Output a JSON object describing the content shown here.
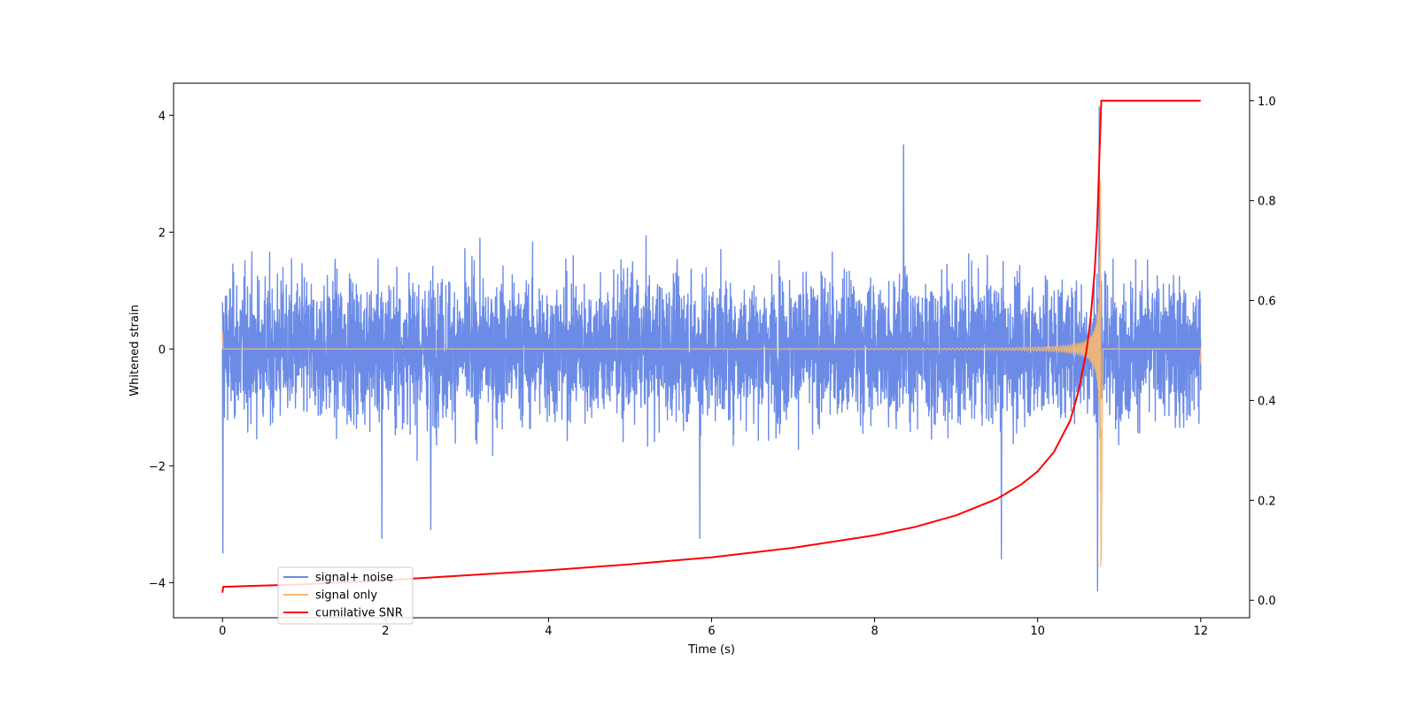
{
  "chart_data": {
    "type": "line",
    "title": "",
    "xlabel": "Time (s)",
    "ylabel": "Whitened strain",
    "y2label": "",
    "xlim": [
      -0.6,
      12.6
    ],
    "ylim": [
      -4.6,
      4.55
    ],
    "y2lim": [
      -0.035,
      1.035
    ],
    "x_ticks": [
      0,
      2,
      4,
      6,
      8,
      10,
      12
    ],
    "x_tick_labels": [
      "0",
      "2",
      "4",
      "6",
      "8",
      "10",
      "12"
    ],
    "y_ticks": [
      4,
      2,
      0,
      -2,
      -4
    ],
    "y_tick_labels": [
      "4",
      "2",
      "0",
      "−2",
      "−4"
    ],
    "y2_ticks": [
      1.0,
      0.8,
      0.6,
      0.4,
      0.2,
      0.0
    ],
    "y2_tick_labels": [
      "1.0",
      "0.8",
      "0.6",
      "0.4",
      "0.2",
      "0.0"
    ],
    "grid": false,
    "legend_position": "lower-left",
    "series": [
      {
        "name": "signal+ noise",
        "color": "#6b8be6",
        "axis": "left",
        "kind": "noise",
        "x_range": [
          0,
          12
        ],
        "typical_range": [
          -2.0,
          2.0
        ],
        "peak_range": [
          -3.6,
          3.5
        ],
        "min_value": -4.15,
        "max_value": 4.15
      },
      {
        "name": "signal only",
        "color": "#f5b971",
        "axis": "left",
        "kind": "chirp",
        "x_range": [
          0,
          12
        ],
        "merger_time": 10.78,
        "peak_value": 4.1,
        "min_value": -3.6
      },
      {
        "name": "cumilative SNR",
        "color": "#ff0000",
        "axis": "right",
        "kind": "cumulative",
        "x": [
          0,
          0.01,
          1,
          2,
          3,
          4,
          5,
          6,
          7,
          8,
          8.5,
          9,
          9.5,
          9.8,
          10,
          10.2,
          10.4,
          10.5,
          10.6,
          10.65,
          10.7,
          10.73,
          10.76,
          10.78,
          10.8,
          11,
          12
        ],
        "values": [
          0.015,
          0.027,
          0.032,
          0.04,
          0.05,
          0.06,
          0.072,
          0.086,
          0.105,
          0.13,
          0.147,
          0.17,
          0.203,
          0.232,
          0.258,
          0.297,
          0.36,
          0.418,
          0.5,
          0.565,
          0.66,
          0.75,
          0.9,
          1.0,
          1.0,
          1.0,
          1.0
        ]
      }
    ]
  }
}
